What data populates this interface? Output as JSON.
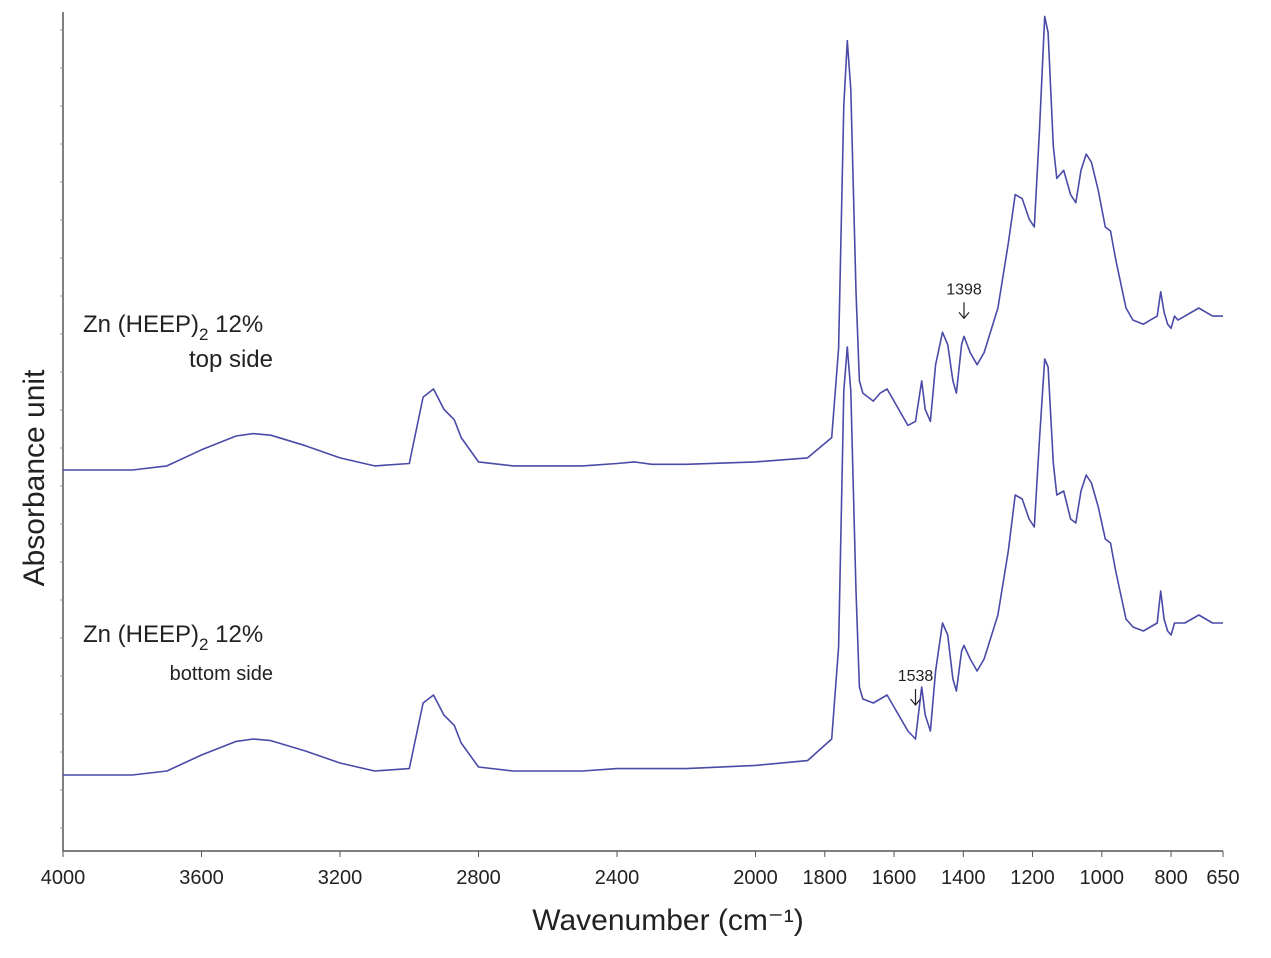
{
  "chart_data": {
    "type": "line",
    "title": "",
    "xlabel": "Wavenumber (cm⁻¹)",
    "ylabel": "Absorbance unit",
    "xlim": [
      4000,
      650
    ],
    "x_reversed": true,
    "x_ticks": [
      4000,
      3600,
      3200,
      2800,
      2400,
      2000,
      1800,
      1600,
      1400,
      1200,
      1000,
      800,
      650
    ],
    "y_tick_labels": false,
    "grid": false,
    "line_color": "#4a4aa8",
    "series": [
      {
        "name_main": "Zn (HEEP)",
        "name_subscript": "2",
        "name_suffix": " 12%",
        "name_line2": "top side",
        "annotation": "1398",
        "annotation_x": 1398,
        "points": [
          [
            4000,
            0.0
          ],
          [
            3900,
            0.0
          ],
          [
            3800,
            0.0
          ],
          [
            3700,
            0.05
          ],
          [
            3600,
            0.25
          ],
          [
            3500,
            0.42
          ],
          [
            3450,
            0.45
          ],
          [
            3400,
            0.43
          ],
          [
            3300,
            0.3
          ],
          [
            3200,
            0.15
          ],
          [
            3100,
            0.05
          ],
          [
            3000,
            0.08
          ],
          [
            2960,
            0.9
          ],
          [
            2930,
            1.0
          ],
          [
            2900,
            0.75
          ],
          [
            2870,
            0.62
          ],
          [
            2850,
            0.4
          ],
          [
            2800,
            0.1
          ],
          [
            2700,
            0.05
          ],
          [
            2500,
            0.05
          ],
          [
            2400,
            0.08
          ],
          [
            2350,
            0.1
          ],
          [
            2300,
            0.07
          ],
          [
            2200,
            0.07
          ],
          [
            2000,
            0.1
          ],
          [
            1850,
            0.15
          ],
          [
            1780,
            0.4
          ],
          [
            1760,
            1.5
          ],
          [
            1745,
            4.5
          ],
          [
            1735,
            5.3
          ],
          [
            1725,
            4.7
          ],
          [
            1710,
            2.2
          ],
          [
            1700,
            1.1
          ],
          [
            1690,
            0.95
          ],
          [
            1660,
            0.85
          ],
          [
            1640,
            0.95
          ],
          [
            1620,
            1.0
          ],
          [
            1600,
            0.85
          ],
          [
            1560,
            0.55
          ],
          [
            1538,
            0.6
          ],
          [
            1520,
            1.1
          ],
          [
            1510,
            0.75
          ],
          [
            1495,
            0.6
          ],
          [
            1480,
            1.3
          ],
          [
            1460,
            1.7
          ],
          [
            1445,
            1.55
          ],
          [
            1430,
            1.1
          ],
          [
            1420,
            0.95
          ],
          [
            1405,
            1.55
          ],
          [
            1398,
            1.65
          ],
          [
            1380,
            1.45
          ],
          [
            1360,
            1.3
          ],
          [
            1340,
            1.45
          ],
          [
            1300,
            2.0
          ],
          [
            1270,
            2.8
          ],
          [
            1250,
            3.4
          ],
          [
            1230,
            3.35
          ],
          [
            1210,
            3.1
          ],
          [
            1195,
            3.0
          ],
          [
            1180,
            4.2
          ],
          [
            1165,
            5.6
          ],
          [
            1155,
            5.4
          ],
          [
            1140,
            4.0
          ],
          [
            1130,
            3.6
          ],
          [
            1110,
            3.7
          ],
          [
            1090,
            3.4
          ],
          [
            1075,
            3.3
          ],
          [
            1060,
            3.7
          ],
          [
            1045,
            3.9
          ],
          [
            1030,
            3.8
          ],
          [
            1010,
            3.45
          ],
          [
            990,
            3.0
          ],
          [
            975,
            2.95
          ],
          [
            960,
            2.6
          ],
          [
            930,
            2.0
          ],
          [
            910,
            1.85
          ],
          [
            880,
            1.8
          ],
          [
            860,
            1.85
          ],
          [
            840,
            1.9
          ],
          [
            830,
            2.2
          ],
          [
            820,
            1.95
          ],
          [
            810,
            1.8
          ],
          [
            800,
            1.75
          ],
          [
            790,
            1.9
          ],
          [
            780,
            1.85
          ],
          [
            760,
            1.9
          ],
          [
            720,
            2.0
          ],
          [
            700,
            1.95
          ],
          [
            680,
            1.9
          ],
          [
            650,
            1.9
          ]
        ]
      },
      {
        "name_main": "Zn (HEEP)",
        "name_subscript": "2",
        "name_suffix": " 12%",
        "name_line2": "bottom side",
        "annotation": "1538",
        "annotation_x": 1538,
        "points": [
          [
            4000,
            0.0
          ],
          [
            3900,
            0.0
          ],
          [
            3800,
            0.0
          ],
          [
            3700,
            0.05
          ],
          [
            3600,
            0.25
          ],
          [
            3500,
            0.42
          ],
          [
            3450,
            0.45
          ],
          [
            3400,
            0.43
          ],
          [
            3300,
            0.3
          ],
          [
            3200,
            0.15
          ],
          [
            3100,
            0.05
          ],
          [
            3000,
            0.08
          ],
          [
            2960,
            0.9
          ],
          [
            2930,
            1.0
          ],
          [
            2900,
            0.75
          ],
          [
            2870,
            0.62
          ],
          [
            2850,
            0.4
          ],
          [
            2800,
            0.1
          ],
          [
            2700,
            0.05
          ],
          [
            2500,
            0.05
          ],
          [
            2400,
            0.08
          ],
          [
            2300,
            0.08
          ],
          [
            2200,
            0.08
          ],
          [
            2000,
            0.12
          ],
          [
            1850,
            0.18
          ],
          [
            1780,
            0.45
          ],
          [
            1760,
            1.6
          ],
          [
            1745,
            4.8
          ],
          [
            1735,
            5.35
          ],
          [
            1725,
            4.8
          ],
          [
            1710,
            2.3
          ],
          [
            1700,
            1.1
          ],
          [
            1690,
            0.95
          ],
          [
            1660,
            0.9
          ],
          [
            1640,
            0.95
          ],
          [
            1620,
            1.0
          ],
          [
            1600,
            0.85
          ],
          [
            1560,
            0.55
          ],
          [
            1538,
            0.45
          ],
          [
            1520,
            1.1
          ],
          [
            1510,
            0.75
          ],
          [
            1495,
            0.55
          ],
          [
            1480,
            1.3
          ],
          [
            1460,
            1.9
          ],
          [
            1445,
            1.75
          ],
          [
            1430,
            1.2
          ],
          [
            1420,
            1.05
          ],
          [
            1405,
            1.55
          ],
          [
            1398,
            1.62
          ],
          [
            1380,
            1.45
          ],
          [
            1360,
            1.3
          ],
          [
            1340,
            1.45
          ],
          [
            1300,
            2.0
          ],
          [
            1270,
            2.8
          ],
          [
            1250,
            3.5
          ],
          [
            1230,
            3.45
          ],
          [
            1210,
            3.2
          ],
          [
            1195,
            3.1
          ],
          [
            1180,
            4.2
          ],
          [
            1165,
            5.2
          ],
          [
            1155,
            5.1
          ],
          [
            1140,
            3.9
          ],
          [
            1130,
            3.5
          ],
          [
            1110,
            3.55
          ],
          [
            1090,
            3.2
          ],
          [
            1075,
            3.15
          ],
          [
            1060,
            3.55
          ],
          [
            1045,
            3.75
          ],
          [
            1030,
            3.65
          ],
          [
            1010,
            3.35
          ],
          [
            990,
            2.95
          ],
          [
            975,
            2.9
          ],
          [
            960,
            2.55
          ],
          [
            930,
            1.95
          ],
          [
            910,
            1.85
          ],
          [
            880,
            1.8
          ],
          [
            860,
            1.85
          ],
          [
            840,
            1.9
          ],
          [
            830,
            2.3
          ],
          [
            820,
            1.95
          ],
          [
            810,
            1.8
          ],
          [
            800,
            1.75
          ],
          [
            790,
            1.9
          ],
          [
            780,
            1.9
          ],
          [
            760,
            1.9
          ],
          [
            720,
            2.0
          ],
          [
            700,
            1.95
          ],
          [
            680,
            1.9
          ],
          [
            650,
            1.9
          ]
        ]
      }
    ]
  }
}
